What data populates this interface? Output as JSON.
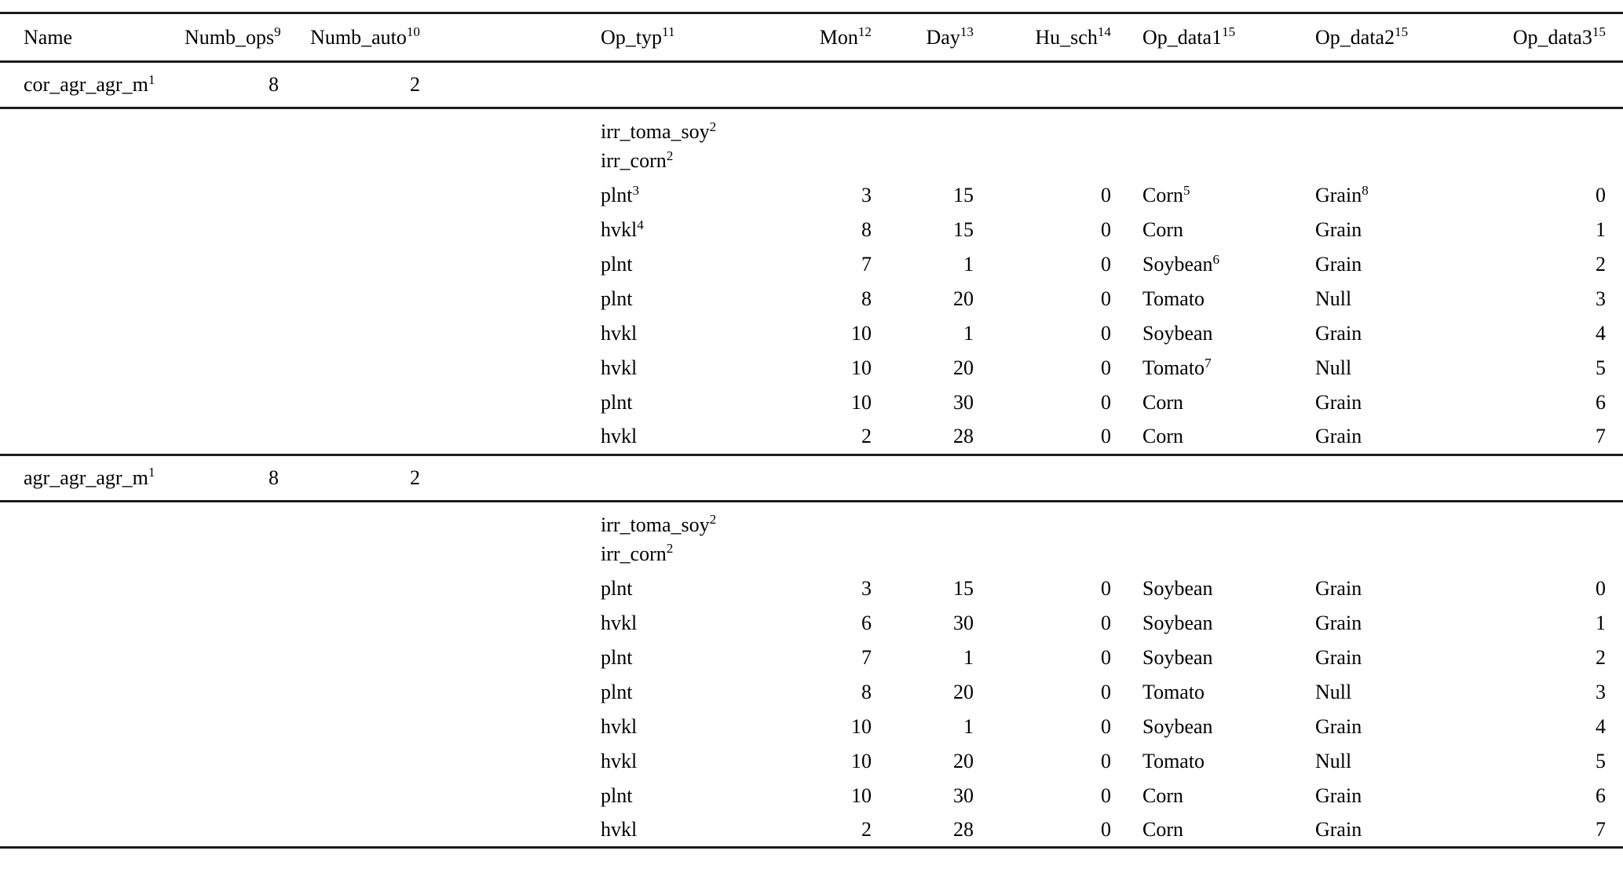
{
  "page": {
    "background": "#ffffff",
    "text_color": "#000000",
    "rule_color": "#1c1c1c"
  },
  "table": {
    "columns": [
      {
        "key": "name",
        "label": "Name",
        "sup": ""
      },
      {
        "key": "numb-ops",
        "label": "Numb_ops",
        "sup": "9"
      },
      {
        "key": "numb-auto",
        "label": "Numb_auto",
        "sup": "10"
      },
      {
        "key": "op-typ",
        "label": "Op_typ",
        "sup": "11"
      },
      {
        "key": "mon",
        "label": "Mon",
        "sup": "12"
      },
      {
        "key": "day",
        "label": "Day",
        "sup": "13"
      },
      {
        "key": "hu-sch",
        "label": "Hu_sch",
        "sup": "14"
      },
      {
        "key": "op-data1",
        "label": "Op_data1",
        "sup": "15"
      },
      {
        "key": "op-data2",
        "label": "Op_data2",
        "sup": "15"
      },
      {
        "key": "op-data3",
        "label": "Op_data3",
        "sup": "15"
      }
    ],
    "groups": [
      {
        "summary": {
          "cells": [
            {
              "t": "cor_agr_agr_m",
              "s": "1"
            },
            {
              "t": "8"
            },
            {
              "t": "2"
            },
            {
              "t": ""
            },
            {
              "t": ""
            },
            {
              "t": ""
            },
            {
              "t": ""
            },
            {
              "t": ""
            },
            {
              "t": ""
            },
            {
              "t": ""
            }
          ]
        },
        "operations": [
          {
            "cells": [
              {
                "t": ""
              },
              {
                "t": ""
              },
              {
                "t": ""
              },
              {
                "t": "irr_toma_soy",
                "s": "2"
              },
              {
                "t": ""
              },
              {
                "t": ""
              },
              {
                "t": ""
              },
              {
                "t": ""
              },
              {
                "t": ""
              },
              {
                "t": ""
              }
            ]
          },
          {
            "cells": [
              {
                "t": ""
              },
              {
                "t": ""
              },
              {
                "t": ""
              },
              {
                "t": "irr_corn",
                "s": "2"
              },
              {
                "t": ""
              },
              {
                "t": ""
              },
              {
                "t": ""
              },
              {
                "t": ""
              },
              {
                "t": ""
              },
              {
                "t": ""
              }
            ]
          },
          {
            "cells": [
              {
                "t": ""
              },
              {
                "t": ""
              },
              {
                "t": ""
              },
              {
                "t": "plnt",
                "s": "3"
              },
              {
                "t": "3"
              },
              {
                "t": "15"
              },
              {
                "t": "0"
              },
              {
                "t": "Corn",
                "s": "5"
              },
              {
                "t": "Grain",
                "s": "8"
              },
              {
                "t": "0"
              }
            ]
          },
          {
            "cells": [
              {
                "t": ""
              },
              {
                "t": ""
              },
              {
                "t": ""
              },
              {
                "t": "hvkl",
                "s": "4"
              },
              {
                "t": "8"
              },
              {
                "t": "15"
              },
              {
                "t": "0"
              },
              {
                "t": "Corn"
              },
              {
                "t": "Grain"
              },
              {
                "t": "1"
              }
            ]
          },
          {
            "cells": [
              {
                "t": ""
              },
              {
                "t": ""
              },
              {
                "t": ""
              },
              {
                "t": "plnt"
              },
              {
                "t": "7"
              },
              {
                "t": "1"
              },
              {
                "t": "0"
              },
              {
                "t": "Soybean",
                "s": "6"
              },
              {
                "t": "Grain"
              },
              {
                "t": "2"
              }
            ]
          },
          {
            "cells": [
              {
                "t": ""
              },
              {
                "t": ""
              },
              {
                "t": ""
              },
              {
                "t": "plnt"
              },
              {
                "t": "8"
              },
              {
                "t": "20"
              },
              {
                "t": "0"
              },
              {
                "t": "Tomato"
              },
              {
                "t": "Null"
              },
              {
                "t": "3"
              }
            ]
          },
          {
            "cells": [
              {
                "t": ""
              },
              {
                "t": ""
              },
              {
                "t": ""
              },
              {
                "t": "hvkl"
              },
              {
                "t": "10"
              },
              {
                "t": "1"
              },
              {
                "t": "0"
              },
              {
                "t": "Soybean"
              },
              {
                "t": "Grain"
              },
              {
                "t": "4"
              }
            ]
          },
          {
            "cells": [
              {
                "t": ""
              },
              {
                "t": ""
              },
              {
                "t": ""
              },
              {
                "t": "hvkl"
              },
              {
                "t": "10"
              },
              {
                "t": "20"
              },
              {
                "t": "0"
              },
              {
                "t": "Tomato",
                "s": "7"
              },
              {
                "t": "Null"
              },
              {
                "t": "5"
              }
            ]
          },
          {
            "cells": [
              {
                "t": ""
              },
              {
                "t": ""
              },
              {
                "t": ""
              },
              {
                "t": "plnt"
              },
              {
                "t": "10"
              },
              {
                "t": "30"
              },
              {
                "t": "0"
              },
              {
                "t": "Corn"
              },
              {
                "t": "Grain"
              },
              {
                "t": "6"
              }
            ]
          },
          {
            "cells": [
              {
                "t": ""
              },
              {
                "t": ""
              },
              {
                "t": ""
              },
              {
                "t": "hvkl"
              },
              {
                "t": "2"
              },
              {
                "t": "28"
              },
              {
                "t": "0"
              },
              {
                "t": "Corn"
              },
              {
                "t": "Grain"
              },
              {
                "t": "7"
              }
            ]
          }
        ]
      },
      {
        "summary": {
          "cells": [
            {
              "t": "agr_agr_agr_m",
              "s": "1"
            },
            {
              "t": "8"
            },
            {
              "t": "2"
            },
            {
              "t": ""
            },
            {
              "t": ""
            },
            {
              "t": ""
            },
            {
              "t": ""
            },
            {
              "t": ""
            },
            {
              "t": ""
            },
            {
              "t": ""
            }
          ]
        },
        "operations": [
          {
            "cells": [
              {
                "t": ""
              },
              {
                "t": ""
              },
              {
                "t": ""
              },
              {
                "t": "irr_toma_soy",
                "s": "2"
              },
              {
                "t": ""
              },
              {
                "t": ""
              },
              {
                "t": ""
              },
              {
                "t": ""
              },
              {
                "t": ""
              },
              {
                "t": ""
              }
            ]
          },
          {
            "cells": [
              {
                "t": ""
              },
              {
                "t": ""
              },
              {
                "t": ""
              },
              {
                "t": "irr_corn",
                "s": "2"
              },
              {
                "t": ""
              },
              {
                "t": ""
              },
              {
                "t": ""
              },
              {
                "t": ""
              },
              {
                "t": ""
              },
              {
                "t": ""
              }
            ]
          },
          {
            "cells": [
              {
                "t": ""
              },
              {
                "t": ""
              },
              {
                "t": ""
              },
              {
                "t": "plnt"
              },
              {
                "t": "3"
              },
              {
                "t": "15"
              },
              {
                "t": "0"
              },
              {
                "t": "Soybean"
              },
              {
                "t": "Grain"
              },
              {
                "t": "0"
              }
            ]
          },
          {
            "cells": [
              {
                "t": ""
              },
              {
                "t": ""
              },
              {
                "t": ""
              },
              {
                "t": "hvkl"
              },
              {
                "t": "6"
              },
              {
                "t": "30"
              },
              {
                "t": "0"
              },
              {
                "t": "Soybean"
              },
              {
                "t": "Grain"
              },
              {
                "t": "1"
              }
            ]
          },
          {
            "cells": [
              {
                "t": ""
              },
              {
                "t": ""
              },
              {
                "t": ""
              },
              {
                "t": "plnt"
              },
              {
                "t": "7"
              },
              {
                "t": "1"
              },
              {
                "t": "0"
              },
              {
                "t": "Soybean"
              },
              {
                "t": "Grain"
              },
              {
                "t": "2"
              }
            ]
          },
          {
            "cells": [
              {
                "t": ""
              },
              {
                "t": ""
              },
              {
                "t": ""
              },
              {
                "t": "plnt"
              },
              {
                "t": "8"
              },
              {
                "t": "20"
              },
              {
                "t": "0"
              },
              {
                "t": "Tomato"
              },
              {
                "t": "Null"
              },
              {
                "t": "3"
              }
            ]
          },
          {
            "cells": [
              {
                "t": ""
              },
              {
                "t": ""
              },
              {
                "t": ""
              },
              {
                "t": "hvkl"
              },
              {
                "t": "10"
              },
              {
                "t": "1"
              },
              {
                "t": "0"
              },
              {
                "t": "Soybean"
              },
              {
                "t": "Grain"
              },
              {
                "t": "4"
              }
            ]
          },
          {
            "cells": [
              {
                "t": ""
              },
              {
                "t": ""
              },
              {
                "t": ""
              },
              {
                "t": "hvkl"
              },
              {
                "t": "10"
              },
              {
                "t": "20"
              },
              {
                "t": "0"
              },
              {
                "t": "Tomato"
              },
              {
                "t": "Null"
              },
              {
                "t": "5"
              }
            ]
          },
          {
            "cells": [
              {
                "t": ""
              },
              {
                "t": ""
              },
              {
                "t": ""
              },
              {
                "t": "plnt"
              },
              {
                "t": "10"
              },
              {
                "t": "30"
              },
              {
                "t": "0"
              },
              {
                "t": "Corn"
              },
              {
                "t": "Grain"
              },
              {
                "t": "6"
              }
            ]
          },
          {
            "cells": [
              {
                "t": ""
              },
              {
                "t": ""
              },
              {
                "t": ""
              },
              {
                "t": "hvkl"
              },
              {
                "t": "2"
              },
              {
                "t": "28"
              },
              {
                "t": "0"
              },
              {
                "t": "Corn"
              },
              {
                "t": "Grain"
              },
              {
                "t": "7"
              }
            ]
          }
        ]
      }
    ]
  }
}
